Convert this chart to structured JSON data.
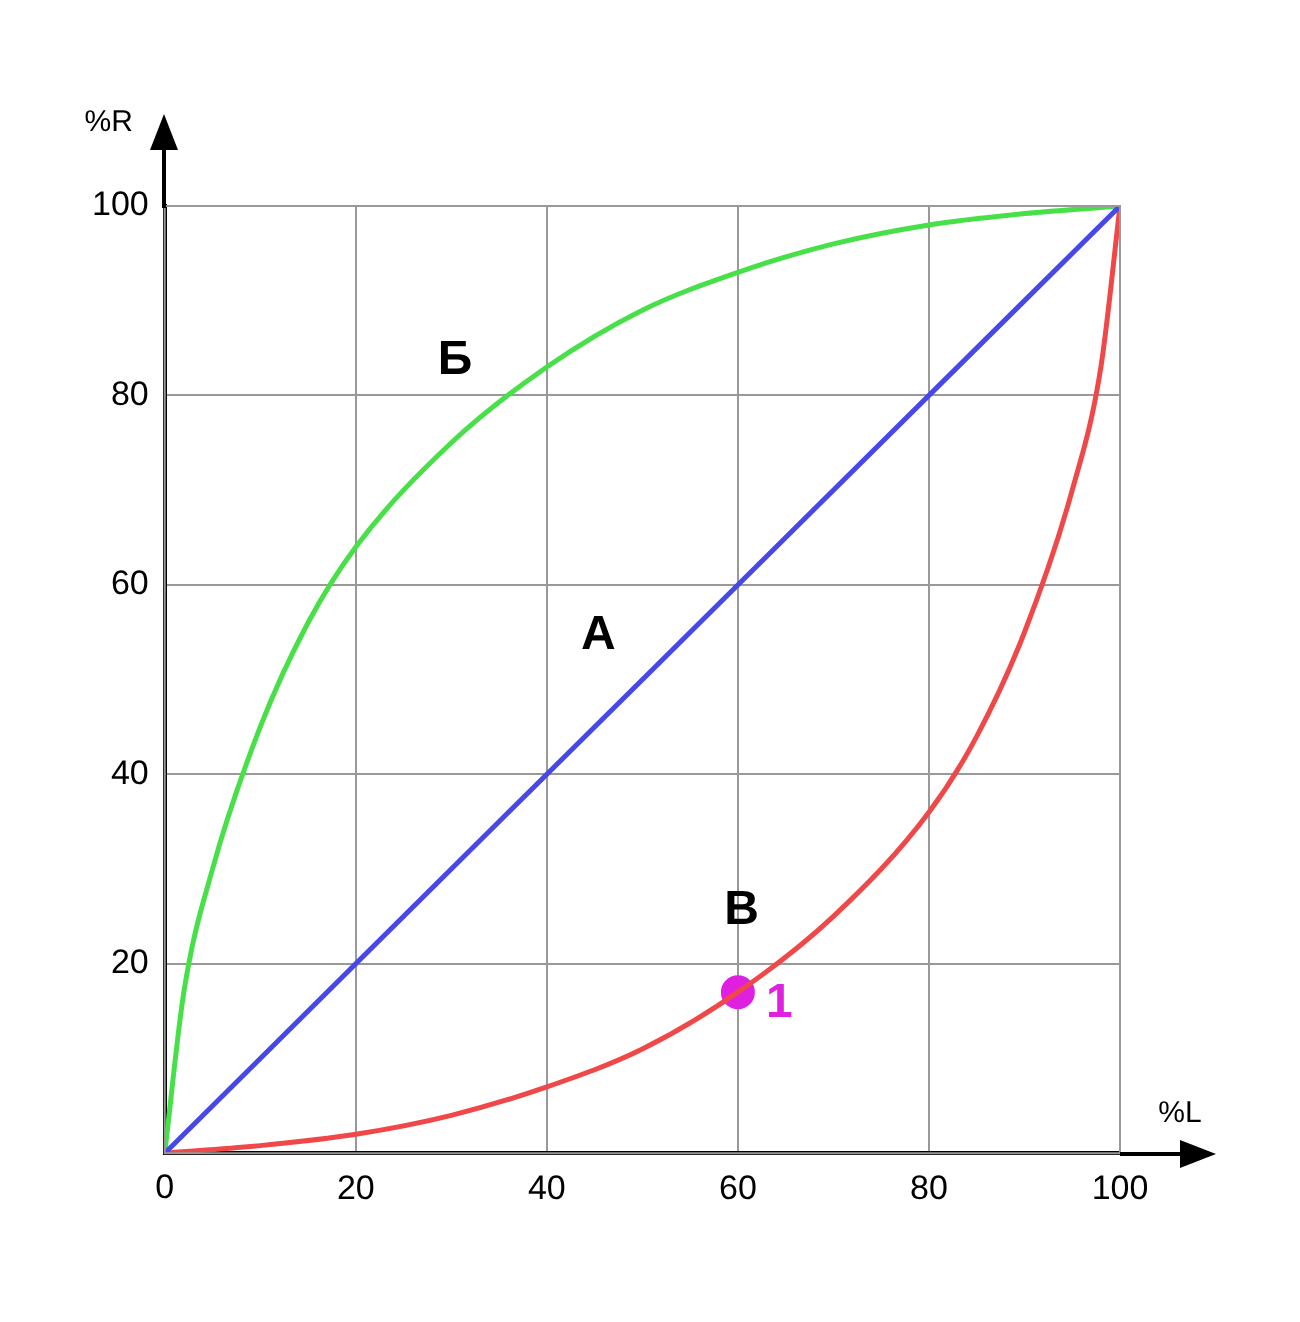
{
  "chart_data": {
    "type": "line",
    "xlabel": "%L",
    "ylabel": "%R",
    "xlim": [
      0,
      100
    ],
    "ylim": [
      0,
      100
    ],
    "xticks": [
      0,
      20,
      40,
      60,
      80,
      100
    ],
    "yticks": [
      {
        "value": 0,
        "label": null
      },
      20,
      40,
      60,
      80,
      100
    ],
    "grid": true,
    "legend": false,
    "series": [
      {
        "name": "А",
        "color": "#4848e8",
        "x": [
          0,
          100
        ],
        "values": [
          0,
          100
        ]
      },
      {
        "name": "Б",
        "color": "#48e048",
        "x": [
          0,
          2,
          5,
          10,
          15,
          20,
          30,
          40,
          50,
          60,
          70,
          80,
          90,
          100
        ],
        "values": [
          0,
          17,
          30,
          45,
          56,
          64,
          75,
          83,
          89,
          93,
          96,
          98,
          99.2,
          100
        ]
      },
      {
        "name": "В",
        "color": "#f04848",
        "x": [
          0,
          10,
          20,
          30,
          40,
          50,
          60,
          70,
          80,
          85,
          90,
          95,
          98,
          100
        ],
        "values": [
          0,
          0.8,
          2,
          4,
          7,
          11,
          17,
          25,
          36,
          44,
          55,
          70,
          83,
          100
        ]
      },
      {
        "type": "scatter",
        "name": "1",
        "color": "#e020e0",
        "x": [
          60
        ],
        "values": [
          17
        ]
      }
    ]
  }
}
